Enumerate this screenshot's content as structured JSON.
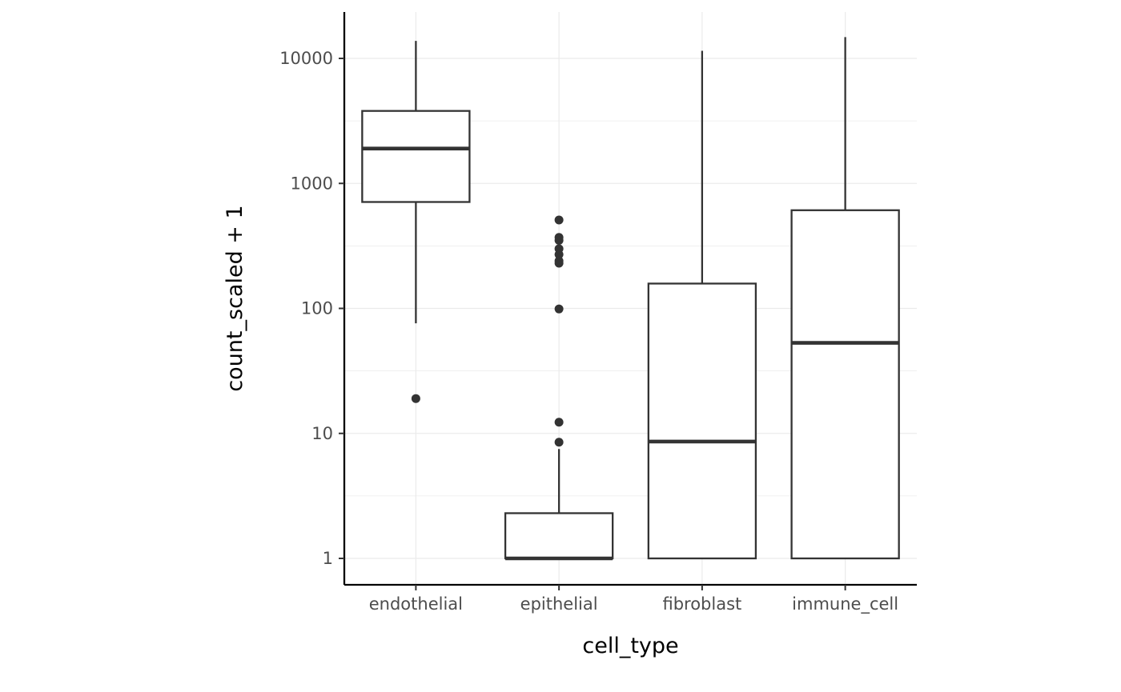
{
  "chart_data": {
    "type": "boxplot",
    "xlabel": "cell_type",
    "ylabel": "count_scaled + 1",
    "y_scale": "log10",
    "ylim": [
      0.63,
      23000
    ],
    "y_ticks": [
      1,
      10,
      100,
      1000,
      10000
    ],
    "y_tick_labels": [
      "1",
      "10",
      "100",
      "1000",
      "10000"
    ],
    "grid": true,
    "categories": [
      "endothelial",
      "epithelial",
      "fibroblast",
      "immune_cell"
    ],
    "boxes": [
      {
        "category": "endothelial",
        "whisker_low": 76,
        "q1": 710,
        "median": 1900,
        "q3": 3800,
        "whisker_high": 13800,
        "outliers": [
          19
        ]
      },
      {
        "category": "epithelial",
        "whisker_low": 1,
        "q1": 1,
        "median": 1,
        "q3": 2.3,
        "whisker_high": 7.5,
        "outliers": [
          8.5,
          12.3,
          99,
          230,
          240,
          270,
          300,
          350,
          370,
          510
        ]
      },
      {
        "category": "fibroblast",
        "whisker_low": 1,
        "q1": 1,
        "median": 8.6,
        "q3": 158,
        "whisker_high": 11500,
        "outliers": []
      },
      {
        "category": "immune_cell",
        "whisker_low": 1,
        "q1": 1,
        "median": 53,
        "q3": 610,
        "whisker_high": 14800,
        "outliers": []
      }
    ],
    "colors": {
      "box_stroke": "#333333",
      "box_fill": "#ffffff",
      "grid": "#ebebeb",
      "axis": "#000000",
      "tick_text": "#4d4d4d"
    }
  }
}
